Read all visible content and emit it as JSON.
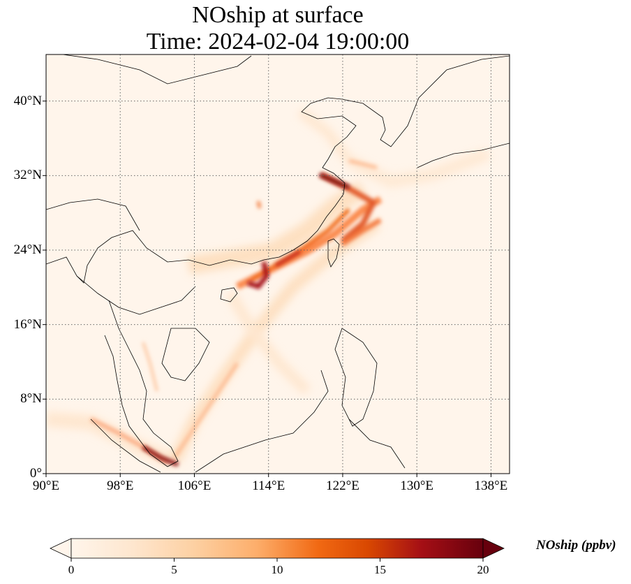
{
  "title": {
    "line1": "NOship at surface",
    "line2": "Time: 2024-02-04 19:00:00"
  },
  "map": {
    "projection": "PlateCarree",
    "lon_range": [
      90,
      140
    ],
    "lat_range": [
      0,
      45
    ],
    "gridlines": "dotted",
    "lat_ticks": [
      {
        "label": "0°",
        "value": 0
      },
      {
        "label": "8°N",
        "value": 8
      },
      {
        "label": "16°N",
        "value": 16
      },
      {
        "label": "24°N",
        "value": 24
      },
      {
        "label": "32°N",
        "value": 32
      },
      {
        "label": "40°N",
        "value": 40
      }
    ],
    "lon_ticks": [
      {
        "label": "90°E",
        "value": 90
      },
      {
        "label": "98°E",
        "value": 98
      },
      {
        "label": "106°E",
        "value": 106
      },
      {
        "label": "114°E",
        "value": 114
      },
      {
        "label": "122°E",
        "value": 122
      },
      {
        "label": "130°E",
        "value": 130
      },
      {
        "label": "138°E",
        "value": 138
      }
    ],
    "background_color": "#fff5eb",
    "coastline_color": "#000000"
  },
  "colorbar": {
    "label": "NOship (ppbv)",
    "colormap": "OrRd",
    "range": [
      0,
      20
    ],
    "extend": "both",
    "ticks": [
      {
        "label": "0",
        "value": 0
      },
      {
        "label": "5",
        "value": 5
      },
      {
        "label": "10",
        "value": 10
      },
      {
        "label": "15",
        "value": 15
      },
      {
        "label": "20",
        "value": 20
      }
    ],
    "colors": [
      "#fff5eb",
      "#fee6ce",
      "#fdd0a2",
      "#fdae6b",
      "#f16913",
      "#d94801",
      "#a50f15",
      "#67000d"
    ]
  }
}
